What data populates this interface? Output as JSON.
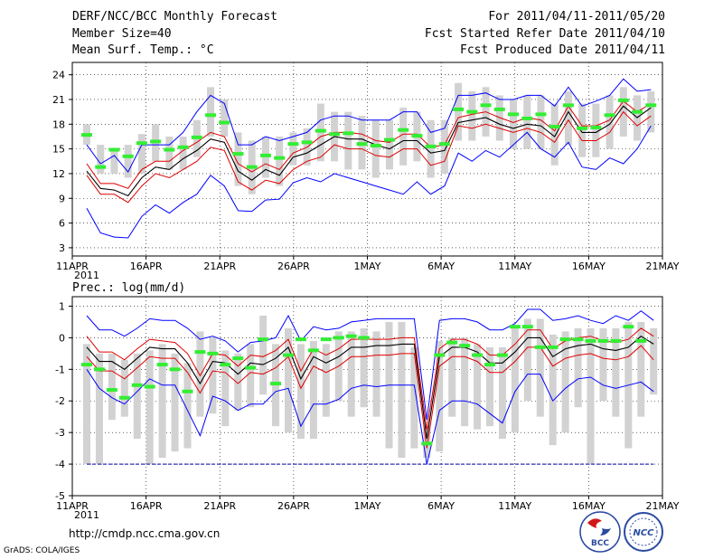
{
  "header": {
    "title": "DERF/NCC/BCC Monthly Forecast",
    "member_size": "Member Size=40",
    "variable": "Mean Surf. Temp.: °C",
    "period": "For 2011/04/11-2011/05/20",
    "start_date": "Fcst Started Refer Date 2011/04/10",
    "produced_date": "Fcst Produced Date 2011/04/11"
  },
  "footer": {
    "url": "http://cmdp.ncc.cma.gov.cn",
    "credit": "GrADS: COLA/IGES",
    "logo_bcc": "BCC",
    "logo_ncc": "NCC"
  },
  "colors": {
    "envelope": "#0000ff",
    "spread": "#dd0000",
    "mean": "#000000",
    "obs": "#33ee33",
    "box": "#d2d2d2",
    "floor": "#0000aa"
  },
  "chart_data": [
    {
      "type": "line",
      "title": "Mean Surf. Temp.: °C",
      "xlabels": [
        "11APR",
        "16APR",
        "21APR",
        "26APR",
        "1MAY",
        "6MAY",
        "11MAY",
        "16MAY",
        "21MAY"
      ],
      "year_label": "2011",
      "ylim": [
        2,
        25.5
      ],
      "yticks": [
        3,
        6,
        9,
        12,
        15,
        18,
        21,
        24
      ],
      "series": [
        {
          "name": "max",
          "values": [
            7.8,
            4.8,
            4.3,
            4.2,
            6.8,
            8.2,
            7.2,
            8.5,
            9.5,
            11.8,
            10.5,
            7.5,
            7.4,
            8.8,
            8.9,
            10.9,
            11.5,
            11,
            12,
            11.5,
            11,
            10.5,
            10,
            9.5,
            11,
            9.5,
            10.5,
            14.5,
            13.5,
            14.8,
            14,
            15.5,
            17,
            15,
            14,
            15.8,
            12.8,
            12.5,
            13.9,
            13.2,
            15,
            17.8
          ]
        },
        {
          "name": "p75",
          "values": [
            11.8,
            9.5,
            9.5,
            8.5,
            10.5,
            12,
            11.5,
            12.5,
            13.5,
            15.2,
            14.8,
            11,
            10,
            11.2,
            10.8,
            12.5,
            13.5,
            14,
            15.5,
            15,
            15,
            14.2,
            14,
            15,
            15,
            13,
            13.5,
            17.8,
            17.5,
            18,
            17.5,
            17,
            17.5,
            17,
            15.8,
            18.5,
            16,
            16,
            17,
            19.5,
            17.8,
            19
          ]
        },
        {
          "name": "mean",
          "values": [
            12.3,
            10.2,
            10,
            9.3,
            11.5,
            12.8,
            12.5,
            13.8,
            14.8,
            16.2,
            15.8,
            12.3,
            11.2,
            12.5,
            11.8,
            14,
            14.5,
            15.5,
            16.5,
            16.2,
            16.2,
            15.5,
            15,
            16,
            16,
            14.5,
            14.8,
            18.2,
            18.5,
            18.8,
            18,
            17.5,
            18,
            17.8,
            16.5,
            19.5,
            17,
            17,
            18,
            20.2,
            18.8,
            20
          ]
        },
        {
          "name": "p25",
          "values": [
            13.2,
            10.8,
            10.8,
            10.2,
            12.5,
            13.5,
            13.5,
            14.8,
            15.8,
            17,
            16.5,
            13.2,
            12.2,
            13.2,
            12.5,
            14.5,
            15.2,
            16.5,
            17,
            17,
            16.8,
            16,
            15.8,
            16.8,
            16.8,
            15.2,
            15.5,
            18.8,
            19.2,
            19.5,
            18.8,
            18.2,
            18.8,
            18.5,
            17.2,
            20.2,
            17.8,
            17.8,
            18.5,
            20.8,
            19.5,
            20.5
          ]
        },
        {
          "name": "min",
          "values": [
            15.5,
            13.2,
            14.2,
            12.2,
            15.5,
            15.5,
            15.5,
            17,
            19.5,
            21.5,
            20.5,
            15.5,
            15.5,
            16.5,
            16,
            16.5,
            17,
            18.5,
            19,
            19,
            18.5,
            18.5,
            18.5,
            19.5,
            19.5,
            17,
            17.5,
            21.5,
            21.5,
            21.8,
            21,
            21,
            21.5,
            21.5,
            20.2,
            22.5,
            20.2,
            20.8,
            21.5,
            23.5,
            22,
            22.2
          ]
        },
        {
          "name": "observed",
          "values": [
            16.7,
            12.8,
            14.9,
            14.1,
            15.7,
            15.9,
            14.9,
            15.2,
            16.4,
            19.1,
            18.2,
            14.4,
            12.8,
            14.2,
            13.9,
            15.6,
            15.8,
            17.2,
            16.8,
            16.9,
            15.6,
            15.4,
            16.1,
            17.3,
            16.6,
            15.3,
            15.6,
            19.8,
            19.5,
            20.3,
            19.8,
            19.2,
            18.7,
            19.2,
            17.7,
            20.3,
            17.5,
            17.6,
            19.1,
            20.9,
            19.5,
            20.3
          ]
        }
      ],
      "boxes": [
        {
          "lo": 15.5,
          "hi": 18
        },
        {
          "lo": 12,
          "hi": 15.5
        },
        {
          "lo": 12,
          "hi": 15
        },
        {
          "lo": 11.5,
          "hi": 15.5
        },
        {
          "lo": 12,
          "hi": 16.8
        },
        {
          "lo": 13.5,
          "hi": 18
        },
        {
          "lo": 12.5,
          "hi": 16.5
        },
        {
          "lo": 12.5,
          "hi": 16.5
        },
        {
          "lo": 14,
          "hi": 18.5
        },
        {
          "lo": 16.5,
          "hi": 22.5
        },
        {
          "lo": 16.5,
          "hi": 21
        },
        {
          "lo": 10.5,
          "hi": 17
        },
        {
          "lo": 9.5,
          "hi": 16
        },
        {
          "lo": 11.5,
          "hi": 16.5
        },
        {
          "lo": 10.5,
          "hi": 16.5
        },
        {
          "lo": 13,
          "hi": 17
        },
        {
          "lo": 13,
          "hi": 17.5
        },
        {
          "lo": 13.5,
          "hi": 20.5
        },
        {
          "lo": 13.5,
          "hi": 19.5
        },
        {
          "lo": 12.5,
          "hi": 19.5
        },
        {
          "lo": 12.5,
          "hi": 19
        },
        {
          "lo": 11.5,
          "hi": 18.5
        },
        {
          "lo": 12.5,
          "hi": 18.5
        },
        {
          "lo": 13,
          "hi": 20
        },
        {
          "lo": 13.5,
          "hi": 19.5
        },
        {
          "lo": 11.5,
          "hi": 18.5
        },
        {
          "lo": 12,
          "hi": 18.5
        },
        {
          "lo": 16,
          "hi": 23
        },
        {
          "lo": 16,
          "hi": 22
        },
        {
          "lo": 16.5,
          "hi": 22.5
        },
        {
          "lo": 16,
          "hi": 21.5
        },
        {
          "lo": 15,
          "hi": 21
        },
        {
          "lo": 15,
          "hi": 21.5
        },
        {
          "lo": 15,
          "hi": 21.5
        },
        {
          "lo": 13,
          "hi": 20.5
        },
        {
          "lo": 15.5,
          "hi": 22
        },
        {
          "lo": 14,
          "hi": 20.5
        },
        {
          "lo": 14,
          "hi": 20.5
        },
        {
          "lo": 15,
          "hi": 21.5
        },
        {
          "lo": 16.5,
          "hi": 22.5
        },
        {
          "lo": 16,
          "hi": 21.5
        },
        {
          "lo": 17,
          "hi": 22
        }
      ]
    },
    {
      "type": "line",
      "title": "Prec.: log(mm/d)",
      "xlabels": [
        "11APR",
        "16APR",
        "21APR",
        "26APR",
        "1MAY",
        "6MAY",
        "11MAY",
        "16MAY",
        "21MAY"
      ],
      "year_label": "2011",
      "ylim": [
        -5,
        1.3
      ],
      "yticks": [
        -5,
        -4,
        -3,
        -2,
        -1,
        0,
        1
      ],
      "floor": -4,
      "series": [
        {
          "name": "max",
          "values": [
            0.7,
            0.25,
            0.25,
            0.05,
            0.3,
            0.6,
            0.55,
            0.55,
            0.3,
            -0.05,
            0.05,
            -0.1,
            -0.45,
            -0.15,
            -0.1,
            0,
            0.7,
            -0.1,
            0.35,
            0.25,
            0.3,
            0.5,
            0.55,
            0.6,
            0.6,
            0.6,
            0.6,
            -2.6,
            0.55,
            0.6,
            0.6,
            0.5,
            0.25,
            0.25,
            0.45,
            0.9,
            0.9,
            0.55,
            0.6,
            0.7,
            0.55,
            0.45,
            0.7,
            0.55,
            0.85,
            0.55
          ]
        },
        {
          "name": "p75",
          "values": [
            0.05,
            -0.45,
            -0.45,
            -0.7,
            -0.35,
            -0.05,
            -0.1,
            -0.15,
            -0.5,
            -1.2,
            -0.5,
            -0.55,
            -0.9,
            -0.55,
            -0.6,
            -0.4,
            -0.05,
            -1.05,
            -0.35,
            -0.55,
            -0.35,
            -0.05,
            -0.05,
            -0.05,
            -0.05,
            0,
            0,
            -2.9,
            -0.35,
            -0.05,
            -0.05,
            -0.2,
            -0.55,
            -0.55,
            -0.2,
            0.25,
            0.25,
            -0.35,
            -0.1,
            0,
            0.05,
            -0.1,
            -0.15,
            -0.05,
            0.3,
            0.05
          ]
        },
        {
          "name": "mean",
          "values": [
            -0.3,
            -0.75,
            -0.75,
            -1,
            -0.65,
            -0.3,
            -0.35,
            -0.35,
            -0.8,
            -1.45,
            -0.75,
            -0.8,
            -1.15,
            -0.8,
            -0.85,
            -0.65,
            -0.3,
            -1.3,
            -0.6,
            -0.8,
            -0.6,
            -0.3,
            -0.3,
            -0.25,
            -0.25,
            -0.2,
            -0.2,
            -3.2,
            -0.6,
            -0.3,
            -0.3,
            -0.45,
            -0.8,
            -0.8,
            -0.45,
            0,
            0,
            -0.6,
            -0.35,
            -0.25,
            -0.2,
            -0.35,
            -0.4,
            -0.3,
            0.05,
            -0.2
          ]
        },
        {
          "name": "p25",
          "values": [
            -0.6,
            -1.05,
            -1.05,
            -1.3,
            -0.95,
            -0.6,
            -0.65,
            -0.65,
            -1.1,
            -1.75,
            -1.05,
            -1.1,
            -1.45,
            -1.1,
            -1.15,
            -0.95,
            -0.6,
            -1.6,
            -0.9,
            -1.1,
            -0.9,
            -0.6,
            -0.6,
            -0.55,
            -0.55,
            -0.5,
            -0.5,
            -3.5,
            -0.9,
            -0.6,
            -0.6,
            -0.75,
            -1.1,
            -1.1,
            -0.75,
            -0.3,
            -0.3,
            -0.9,
            -0.65,
            -0.55,
            -0.5,
            -0.65,
            -0.7,
            -0.6,
            -0.25,
            -0.7
          ]
        },
        {
          "name": "min",
          "values": [
            -1,
            -1.6,
            -1.9,
            -2.1,
            -1.7,
            -1.3,
            -1.5,
            -1.5,
            -2.3,
            -3.1,
            -1.85,
            -2,
            -2.3,
            -2.1,
            -2.1,
            -1.7,
            -1.6,
            -2.8,
            -2.1,
            -2.1,
            -1.95,
            -1.6,
            -1.5,
            -1.55,
            -1.5,
            -1.5,
            -1.5,
            -4,
            -2.3,
            -2,
            -2,
            -2.1,
            -2.4,
            -2.7,
            -1.7,
            -1.15,
            -1.15,
            -2,
            -1.6,
            -1.3,
            -1.25,
            -1.5,
            -1.6,
            -1.5,
            -1.4,
            -1.7
          ]
        },
        {
          "name": "observed",
          "values": [
            -0.85,
            -1,
            -1.65,
            -1.9,
            -1.5,
            -1.55,
            -0.85,
            -1,
            -1.7,
            -0.45,
            -0.5,
            -0.85,
            -0.65,
            -0.95,
            -0.05,
            -1.45,
            -0.55,
            -0.05,
            -0.4,
            -0.05,
            0,
            0.05,
            0,
            null,
            null,
            null,
            null,
            -3.35,
            -0.55,
            -0.15,
            -0.25,
            -0.55,
            -0.85,
            -0.55,
            0.35,
            0.35,
            -0.3,
            -0.3,
            -0.05,
            -0.05,
            -0.1,
            -0.1,
            -0.1,
            0.35,
            -0.1,
            null
          ]
        }
      ],
      "boxes": [
        {
          "lo": -4,
          "hi": -0.2
        },
        {
          "lo": -4,
          "hi": -0.5
        },
        {
          "lo": -2.6,
          "hi": -0.5
        },
        {
          "lo": -2.5,
          "hi": -0.7
        },
        {
          "lo": -3.2,
          "hi": -0.5
        },
        {
          "lo": -4,
          "hi": -0.4
        },
        {
          "lo": -3.8,
          "hi": -0.2
        },
        {
          "lo": -3.6,
          "hi": -0.5
        },
        {
          "lo": -3.5,
          "hi": -0.8
        },
        {
          "lo": -2.5,
          "hi": 0.2
        },
        {
          "lo": -2.4,
          "hi": 0
        },
        {
          "lo": -2.8,
          "hi": -0.4
        },
        {
          "lo": -2.3,
          "hi": -0.5
        },
        {
          "lo": -2.2,
          "hi": -0.2
        },
        {
          "lo": -1.8,
          "hi": 0.7
        },
        {
          "lo": -2.8,
          "hi": -0.2
        },
        {
          "lo": -3,
          "hi": 0.3
        },
        {
          "lo": -3.2,
          "hi": -0.2
        },
        {
          "lo": -3.2,
          "hi": -0.1
        },
        {
          "lo": -2.5,
          "hi": -0.2
        },
        {
          "lo": -2,
          "hi": 0.2
        },
        {
          "lo": -2.5,
          "hi": 0.2
        },
        {
          "lo": -2.2,
          "hi": 0.3
        },
        {
          "lo": -2.5,
          "hi": 0.2
        },
        {
          "lo": -3.5,
          "hi": 0.5
        },
        {
          "lo": -3.8,
          "hi": 0.5
        },
        {
          "lo": -3.5,
          "hi": -0.3
        },
        {
          "lo": -3.8,
          "hi": -2.8
        },
        {
          "lo": -3.6,
          "hi": -0.1
        },
        {
          "lo": -2.5,
          "hi": 0
        },
        {
          "lo": -2.8,
          "hi": 0
        },
        {
          "lo": -2.9,
          "hi": -0.2
        },
        {
          "lo": -2.8,
          "hi": -0.3
        },
        {
          "lo": -3.2,
          "hi": -0.3
        },
        {
          "lo": -3,
          "hi": 0.4
        },
        {
          "lo": -2,
          "hi": 0.6
        },
        {
          "lo": -2.5,
          "hi": 0.6
        },
        {
          "lo": -3.4,
          "hi": 0.1
        },
        {
          "lo": -3,
          "hi": 0.2
        },
        {
          "lo": -2.2,
          "hi": 0.3
        },
        {
          "lo": -4,
          "hi": 0.3
        },
        {
          "lo": -2,
          "hi": 0.3
        },
        {
          "lo": -2.5,
          "hi": 0.3
        },
        {
          "lo": -3.5,
          "hi": 0.5
        },
        {
          "lo": -2.5,
          "hi": 0.5
        },
        {
          "lo": -1.8,
          "hi": 0.3
        }
      ]
    }
  ]
}
